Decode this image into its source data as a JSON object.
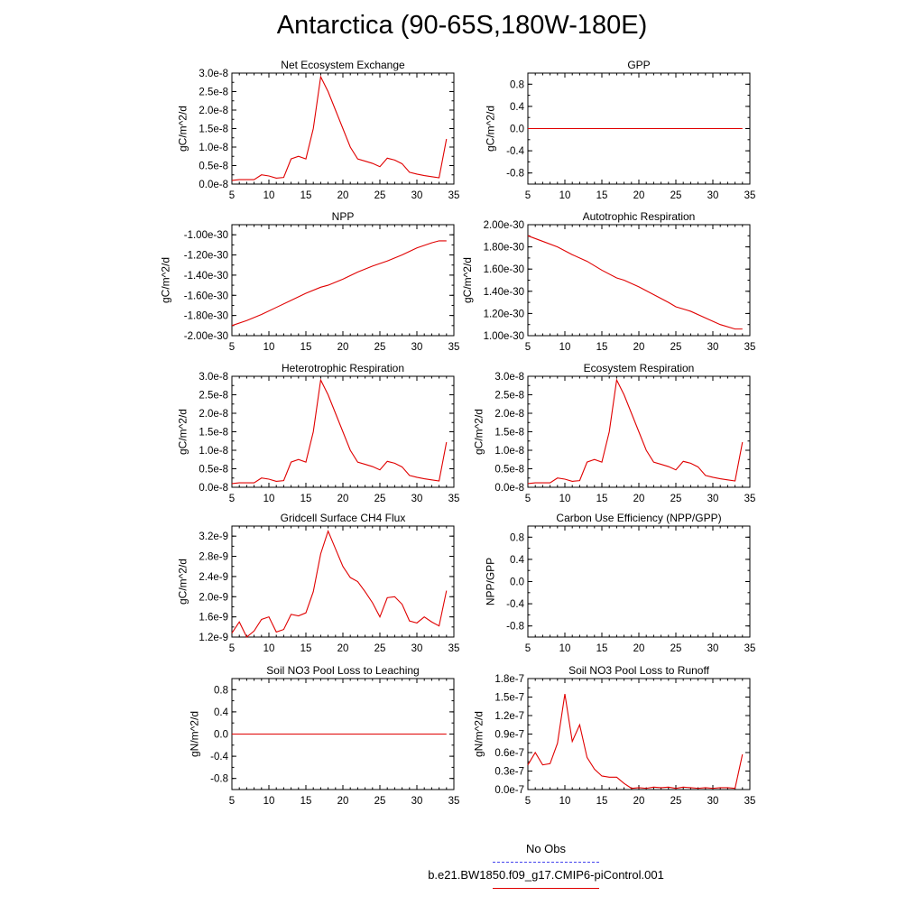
{
  "title": "Antarctica (90-65S,180W-180E)",
  "colors": {
    "model": "#e00000",
    "obs": "#4444ee"
  },
  "legend": {
    "obs_label": "No Obs",
    "model_label": "b.e21.BW1850.f09_g17.CMIP6-piControl.001"
  },
  "chart_data": [
    {
      "type": "line",
      "title": "Net Ecosystem Exchange",
      "ylabel": "gC/m^2/d",
      "xlim": [
        5,
        35
      ],
      "ylim": [
        0,
        3e-08
      ],
      "xticks": [
        5,
        10,
        15,
        20,
        25,
        30,
        35
      ],
      "yticks": [
        0,
        5e-09,
        1e-08,
        1.5e-08,
        2e-08,
        2.5e-08,
        3e-08
      ],
      "ytick_labels": [
        "0.0e-8",
        "0.5e-8",
        "1.0e-8",
        "1.5e-8",
        "2.0e-8",
        "2.5e-8",
        "3.0e-8"
      ],
      "series": [
        {
          "x": [
            5,
            6,
            7,
            8,
            9,
            10,
            11,
            12,
            13,
            14,
            15,
            16,
            17,
            18,
            19,
            20,
            21,
            22,
            23,
            24,
            25,
            26,
            27,
            28,
            29,
            30,
            31,
            32,
            33,
            34
          ],
          "values": [
            1e-09,
            1.2e-09,
            1.2e-09,
            1.2e-09,
            2.5e-09,
            2.2e-09,
            1.6e-09,
            1.8e-09,
            6.8e-09,
            7.5e-09,
            6.8e-09,
            1.5e-08,
            2.9e-08,
            2.5e-08,
            2e-08,
            1.5e-08,
            1e-08,
            6.8e-09,
            6.2e-09,
            5.6e-09,
            4.7e-09,
            7e-09,
            6.5e-09,
            5.5e-09,
            3.2e-09,
            2.7e-09,
            2.3e-09,
            2e-09,
            1.7e-09,
            1.22e-08
          ]
        }
      ]
    },
    {
      "type": "line",
      "title": "GPP",
      "ylabel": "gC/m^2/d",
      "xlim": [
        5,
        35
      ],
      "ylim": [
        -1.0,
        1.0
      ],
      "xticks": [
        5,
        10,
        15,
        20,
        25,
        30,
        35
      ],
      "yticks": [
        -0.8,
        -0.4,
        0.0,
        0.4,
        0.8
      ],
      "ytick_labels": [
        "-0.8",
        "-0.4",
        "0.0",
        "0.4",
        "0.8"
      ],
      "series": [
        {
          "x": [
            5,
            34
          ],
          "values": [
            0,
            0
          ]
        }
      ]
    },
    {
      "type": "line",
      "title": "NPP",
      "ylabel": "gC/m^2/d",
      "xlim": [
        5,
        35
      ],
      "ylim": [
        -2e-30,
        -9e-31
      ],
      "xticks": [
        5,
        10,
        15,
        20,
        25,
        30,
        35
      ],
      "yticks": [
        -2e-30,
        -1.8e-30,
        -1.6e-30,
        -1.4e-30,
        -1.2e-30,
        -1e-30
      ],
      "ytick_labels": [
        "-2.00e-30",
        "-1.80e-30",
        "-1.60e-30",
        "-1.40e-30",
        "-1.20e-30",
        "-1.00e-30"
      ],
      "series": [
        {
          "x": [
            5,
            7,
            9,
            11,
            13,
            15,
            17,
            18,
            20,
            22,
            24,
            26,
            28,
            30,
            32,
            33,
            34
          ],
          "values": [
            -1.9e-30,
            -1.85e-30,
            -1.79e-30,
            -1.72e-30,
            -1.65e-30,
            -1.58e-30,
            -1.52e-30,
            -1.5e-30,
            -1.44e-30,
            -1.37e-30,
            -1.31e-30,
            -1.26e-30,
            -1.2e-30,
            -1.13e-30,
            -1.08e-30,
            -1.06e-30,
            -1.06e-30
          ]
        }
      ]
    },
    {
      "type": "line",
      "title": "Autotrophic Respiration",
      "ylabel": "gC/m^2/d",
      "xlim": [
        5,
        35
      ],
      "ylim": [
        1e-30,
        2e-30
      ],
      "xticks": [
        5,
        10,
        15,
        20,
        25,
        30,
        35
      ],
      "yticks": [
        1e-30,
        1.2e-30,
        1.4e-30,
        1.6e-30,
        1.8e-30,
        2e-30
      ],
      "ytick_labels": [
        "1.00e-30",
        "1.20e-30",
        "1.40e-30",
        "1.60e-30",
        "1.80e-30",
        "2.00e-30"
      ],
      "series": [
        {
          "x": [
            5,
            7,
            9,
            11,
            13,
            15,
            17,
            18,
            20,
            22,
            24,
            25,
            27,
            29,
            31,
            33,
            34
          ],
          "values": [
            1.9e-30,
            1.85e-30,
            1.8e-30,
            1.73e-30,
            1.67e-30,
            1.59e-30,
            1.52e-30,
            1.5e-30,
            1.44e-30,
            1.37e-30,
            1.3e-30,
            1.26e-30,
            1.22e-30,
            1.16e-30,
            1.1e-30,
            1.06e-30,
            1.06e-30
          ]
        }
      ]
    },
    {
      "type": "line",
      "title": "Heterotrophic Respiration",
      "ylabel": "gC/m^2/d",
      "xlim": [
        5,
        35
      ],
      "ylim": [
        0,
        3e-08
      ],
      "xticks": [
        5,
        10,
        15,
        20,
        25,
        30,
        35
      ],
      "yticks": [
        0,
        5e-09,
        1e-08,
        1.5e-08,
        2e-08,
        2.5e-08,
        3e-08
      ],
      "ytick_labels": [
        "0.0e-8",
        "0.5e-8",
        "1.0e-8",
        "1.5e-8",
        "2.0e-8",
        "2.5e-8",
        "3.0e-8"
      ],
      "series": [
        {
          "x": [
            5,
            6,
            7,
            8,
            9,
            10,
            11,
            12,
            13,
            14,
            15,
            16,
            17,
            18,
            19,
            20,
            21,
            22,
            23,
            24,
            25,
            26,
            27,
            28,
            29,
            30,
            31,
            32,
            33,
            34
          ],
          "values": [
            1e-09,
            1.2e-09,
            1.2e-09,
            1.2e-09,
            2.5e-09,
            2.2e-09,
            1.6e-09,
            1.8e-09,
            6.8e-09,
            7.5e-09,
            6.8e-09,
            1.5e-08,
            2.9e-08,
            2.5e-08,
            2e-08,
            1.5e-08,
            1e-08,
            6.8e-09,
            6.2e-09,
            5.6e-09,
            4.7e-09,
            7e-09,
            6.5e-09,
            5.5e-09,
            3.2e-09,
            2.7e-09,
            2.3e-09,
            2e-09,
            1.7e-09,
            1.22e-08
          ]
        }
      ]
    },
    {
      "type": "line",
      "title": "Ecosystem Respiration",
      "ylabel": "gC/m^2/d",
      "xlim": [
        5,
        35
      ],
      "ylim": [
        0,
        3e-08
      ],
      "xticks": [
        5,
        10,
        15,
        20,
        25,
        30,
        35
      ],
      "yticks": [
        0,
        5e-09,
        1e-08,
        1.5e-08,
        2e-08,
        2.5e-08,
        3e-08
      ],
      "ytick_labels": [
        "0.0e-8",
        "0.5e-8",
        "1.0e-8",
        "1.5e-8",
        "2.0e-8",
        "2.5e-8",
        "3.0e-8"
      ],
      "series": [
        {
          "x": [
            5,
            6,
            7,
            8,
            9,
            10,
            11,
            12,
            13,
            14,
            15,
            16,
            17,
            18,
            19,
            20,
            21,
            22,
            23,
            24,
            25,
            26,
            27,
            28,
            29,
            30,
            31,
            32,
            33,
            34
          ],
          "values": [
            1e-09,
            1.2e-09,
            1.2e-09,
            1.2e-09,
            2.5e-09,
            2.2e-09,
            1.6e-09,
            1.8e-09,
            6.8e-09,
            7.5e-09,
            6.8e-09,
            1.5e-08,
            2.9e-08,
            2.5e-08,
            2e-08,
            1.5e-08,
            1e-08,
            6.8e-09,
            6.2e-09,
            5.6e-09,
            4.7e-09,
            7e-09,
            6.5e-09,
            5.5e-09,
            3.2e-09,
            2.7e-09,
            2.3e-09,
            2e-09,
            1.7e-09,
            1.22e-08
          ]
        }
      ]
    },
    {
      "type": "line",
      "title": "Gridcell Surface CH4 Flux",
      "ylabel": "gC/m^2/d",
      "xlim": [
        5,
        35
      ],
      "ylim": [
        1.2e-09,
        3.4e-09
      ],
      "xticks": [
        5,
        10,
        15,
        20,
        25,
        30,
        35
      ],
      "yticks": [
        1.2e-09,
        1.6e-09,
        2e-09,
        2.4e-09,
        2.8e-09,
        3.2e-09
      ],
      "ytick_labels": [
        "1.2e-9",
        "1.6e-9",
        "2.0e-9",
        "2.4e-9",
        "2.8e-9",
        "3.2e-9"
      ],
      "series": [
        {
          "x": [
            5,
            6,
            7,
            8,
            9,
            10,
            11,
            12,
            13,
            14,
            15,
            16,
            17,
            18,
            19,
            20,
            21,
            22,
            23,
            24,
            25,
            26,
            27,
            28,
            29,
            30,
            31,
            32,
            33,
            34
          ],
          "values": [
            1.28e-09,
            1.5e-09,
            1.2e-09,
            1.32e-09,
            1.55e-09,
            1.6e-09,
            1.3e-09,
            1.35e-09,
            1.65e-09,
            1.62e-09,
            1.68e-09,
            2.1e-09,
            2.85e-09,
            3.3e-09,
            2.95e-09,
            2.6e-09,
            2.38e-09,
            2.3e-09,
            2.1e-09,
            1.88e-09,
            1.6e-09,
            1.98e-09,
            2e-09,
            1.85e-09,
            1.52e-09,
            1.48e-09,
            1.6e-09,
            1.5e-09,
            1.42e-09,
            2.12e-09
          ]
        }
      ]
    },
    {
      "type": "line",
      "title": "Carbon Use Efficiency (NPP/GPP)",
      "ylabel": "NPP/GPP",
      "xlim": [
        5,
        35
      ],
      "ylim": [
        -1.0,
        1.0
      ],
      "xticks": [
        5,
        10,
        15,
        20,
        25,
        30,
        35
      ],
      "yticks": [
        -0.8,
        -0.4,
        0.0,
        0.4,
        0.8
      ],
      "ytick_labels": [
        "-0.8",
        "-0.4",
        "0.0",
        "0.4",
        "0.8"
      ],
      "series": []
    },
    {
      "type": "line",
      "title": "Soil NO3 Pool Loss to Leaching",
      "ylabel": "gN/m^2/d",
      "xlim": [
        5,
        35
      ],
      "ylim": [
        -1.0,
        1.0
      ],
      "xticks": [
        5,
        10,
        15,
        20,
        25,
        30,
        35
      ],
      "yticks": [
        -0.8,
        -0.4,
        0.0,
        0.4,
        0.8
      ],
      "ytick_labels": [
        "-0.8",
        "-0.4",
        "0.0",
        "0.4",
        "0.8"
      ],
      "series": [
        {
          "x": [
            5,
            34
          ],
          "values": [
            0,
            0
          ]
        }
      ]
    },
    {
      "type": "line",
      "title": "Soil NO3 Pool Loss to Runoff",
      "ylabel": "gN/m^2/d",
      "xlim": [
        5,
        35
      ],
      "ylim": [
        0,
        1.8e-07
      ],
      "xticks": [
        5,
        10,
        15,
        20,
        25,
        30,
        35
      ],
      "yticks": [
        0,
        3e-08,
        6e-08,
        9e-08,
        1.2e-07,
        1.5e-07,
        1.8e-07
      ],
      "ytick_labels": [
        "0.0e-7",
        "0.3e-7",
        "0.6e-7",
        "0.9e-7",
        "1.2e-7",
        "1.5e-7",
        "1.8e-7"
      ],
      "series": [
        {
          "x": [
            5,
            6,
            7,
            8,
            9,
            10,
            11,
            12,
            13,
            14,
            15,
            16,
            17,
            18,
            19,
            20,
            21,
            22,
            23,
            24,
            25,
            26,
            27,
            28,
            29,
            30,
            31,
            32,
            33,
            34
          ],
          "values": [
            4e-08,
            6e-08,
            4e-08,
            4.2e-08,
            7.5e-08,
            1.55e-07,
            7.8e-08,
            1.05e-07,
            5.2e-08,
            3.3e-08,
            2.2e-08,
            2e-08,
            2e-08,
            1e-08,
            2e-09,
            3e-09,
            2e-09,
            4e-09,
            3e-09,
            4e-09,
            2e-09,
            4e-09,
            3e-09,
            2e-09,
            3e-09,
            2e-09,
            3e-09,
            3e-09,
            2e-09,
            5.7e-08
          ]
        }
      ]
    }
  ]
}
